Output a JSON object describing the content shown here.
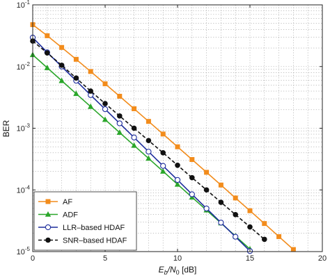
{
  "chart_data": {
    "type": "line",
    "title": "",
    "xlabel": {
      "main": "E",
      "sub1": "b",
      "mid": "/N",
      "sub2": "0",
      "unit": " [dB]"
    },
    "ylabel": "BER",
    "xlim": [
      0,
      20
    ],
    "ylim": [
      1e-05,
      0.1
    ],
    "yscale": "log",
    "grid": true,
    "legend_position": "bottom-left",
    "x_ticks": [
      {
        "value": 0,
        "label": "0"
      },
      {
        "value": 5,
        "label": "5"
      },
      {
        "value": 10,
        "label": "10"
      },
      {
        "value": 15,
        "label": "15"
      },
      {
        "value": 20,
        "label": "20"
      }
    ],
    "y_ticks": [
      {
        "value": 0.1,
        "base": "10",
        "exp": "-1"
      },
      {
        "value": 0.01,
        "base": "10",
        "exp": "-2"
      },
      {
        "value": 0.001,
        "base": "10",
        "exp": "-3"
      },
      {
        "value": 0.0001,
        "base": "10",
        "exp": "-4"
      },
      {
        "value": 1e-05,
        "base": "10",
        "exp": "-5"
      }
    ],
    "series": [
      {
        "name": "AF",
        "color": "#f28c1c",
        "line": "solid",
        "marker": "square",
        "x": [
          0,
          1,
          2,
          3,
          4,
          5,
          6,
          7,
          8,
          9,
          10,
          11,
          12,
          13,
          14,
          15,
          16,
          17,
          18
        ],
        "y": [
          0.0478,
          0.0316,
          0.0204,
          0.0131,
          0.00832,
          0.00525,
          0.0033,
          0.00207,
          0.00129,
          0.000805,
          0.0005,
          0.000311,
          0.000193,
          0.00012,
          7.4e-05,
          4.6e-05,
          2.85e-05,
          1.75e-05,
          1.08e-05
        ]
      },
      {
        "name": "ADF",
        "color": "#2aa62a",
        "line": "solid",
        "marker": "triangle",
        "x": [
          0,
          1,
          2,
          3,
          4,
          5,
          6,
          7,
          8,
          9,
          10,
          11,
          12,
          13,
          14,
          15
        ],
        "y": [
          0.0155,
          0.00955,
          0.00589,
          0.00363,
          0.00224,
          0.00138,
          0.000851,
          0.000525,
          0.000324,
          0.0002,
          0.000123,
          7.6e-05,
          4.7e-05,
          2.9e-05,
          1.78e-05,
          1.1e-05
        ]
      },
      {
        "name": "LLR–based HDAF",
        "color": "#1c2c9c",
        "line": "solid",
        "marker": "circle-open",
        "x": [
          0,
          1,
          2,
          3,
          4,
          5,
          6,
          7,
          8,
          9,
          10,
          11,
          12,
          13,
          14,
          15
        ],
        "y": [
          0.0295,
          0.017,
          0.01,
          0.00589,
          0.00345,
          0.00204,
          0.0012,
          0.000708,
          0.000417,
          0.000245,
          0.000145,
          8.5e-05,
          5e-05,
          2.95e-05,
          1.74e-05,
          1.02e-05
        ]
      },
      {
        "name": "SNR–based HDAF",
        "color": "#111111",
        "line": "dashed",
        "marker": "circle-filled",
        "x": [
          0,
          1,
          2,
          3,
          4,
          5,
          6,
          7,
          8,
          9,
          10,
          11,
          12,
          13,
          14,
          15,
          16
        ],
        "y": [
          0.0259,
          0.0166,
          0.0105,
          0.0065,
          0.004,
          0.00251,
          0.00158,
          0.001,
          0.000631,
          0.0004,
          0.000251,
          0.000158,
          0.0001,
          6.3e-05,
          3.98e-05,
          2.51e-05,
          1.58e-05
        ]
      }
    ]
  }
}
